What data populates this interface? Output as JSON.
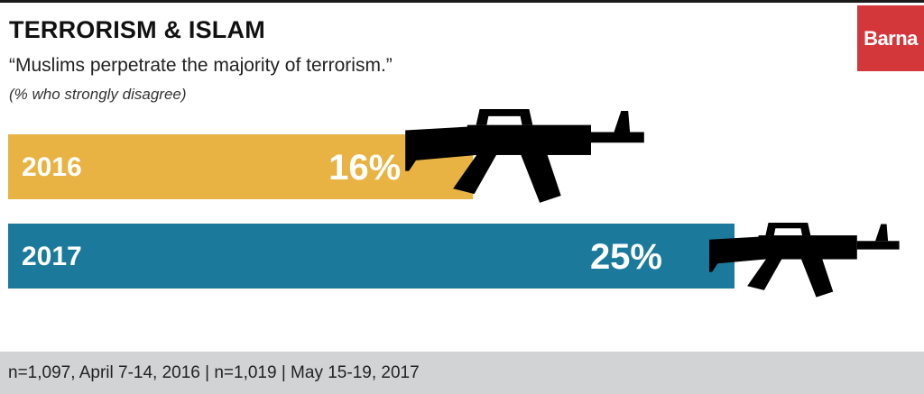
{
  "header": {
    "title": "TERRORISM & ISLAM",
    "subtitle": "“Muslims perpetrate the majority of terrorism.”",
    "note": "(% who strongly disagree)"
  },
  "brand": {
    "logo_text": "Barna",
    "color": "#d4373a"
  },
  "chart_data": {
    "type": "bar",
    "orientation": "horizontal",
    "categories": [
      "2016",
      "2017"
    ],
    "values": [
      16,
      25
    ],
    "value_labels": [
      "16%",
      "25%"
    ],
    "colors": [
      "#e8b342",
      "#1b7a9b"
    ],
    "decoration_icon": "rifle-icon",
    "decoration_color": "#000000"
  },
  "footer": {
    "text": "n=1,097, April 7-14, 2016 | n=1,019 | May 15-19, 2017"
  }
}
